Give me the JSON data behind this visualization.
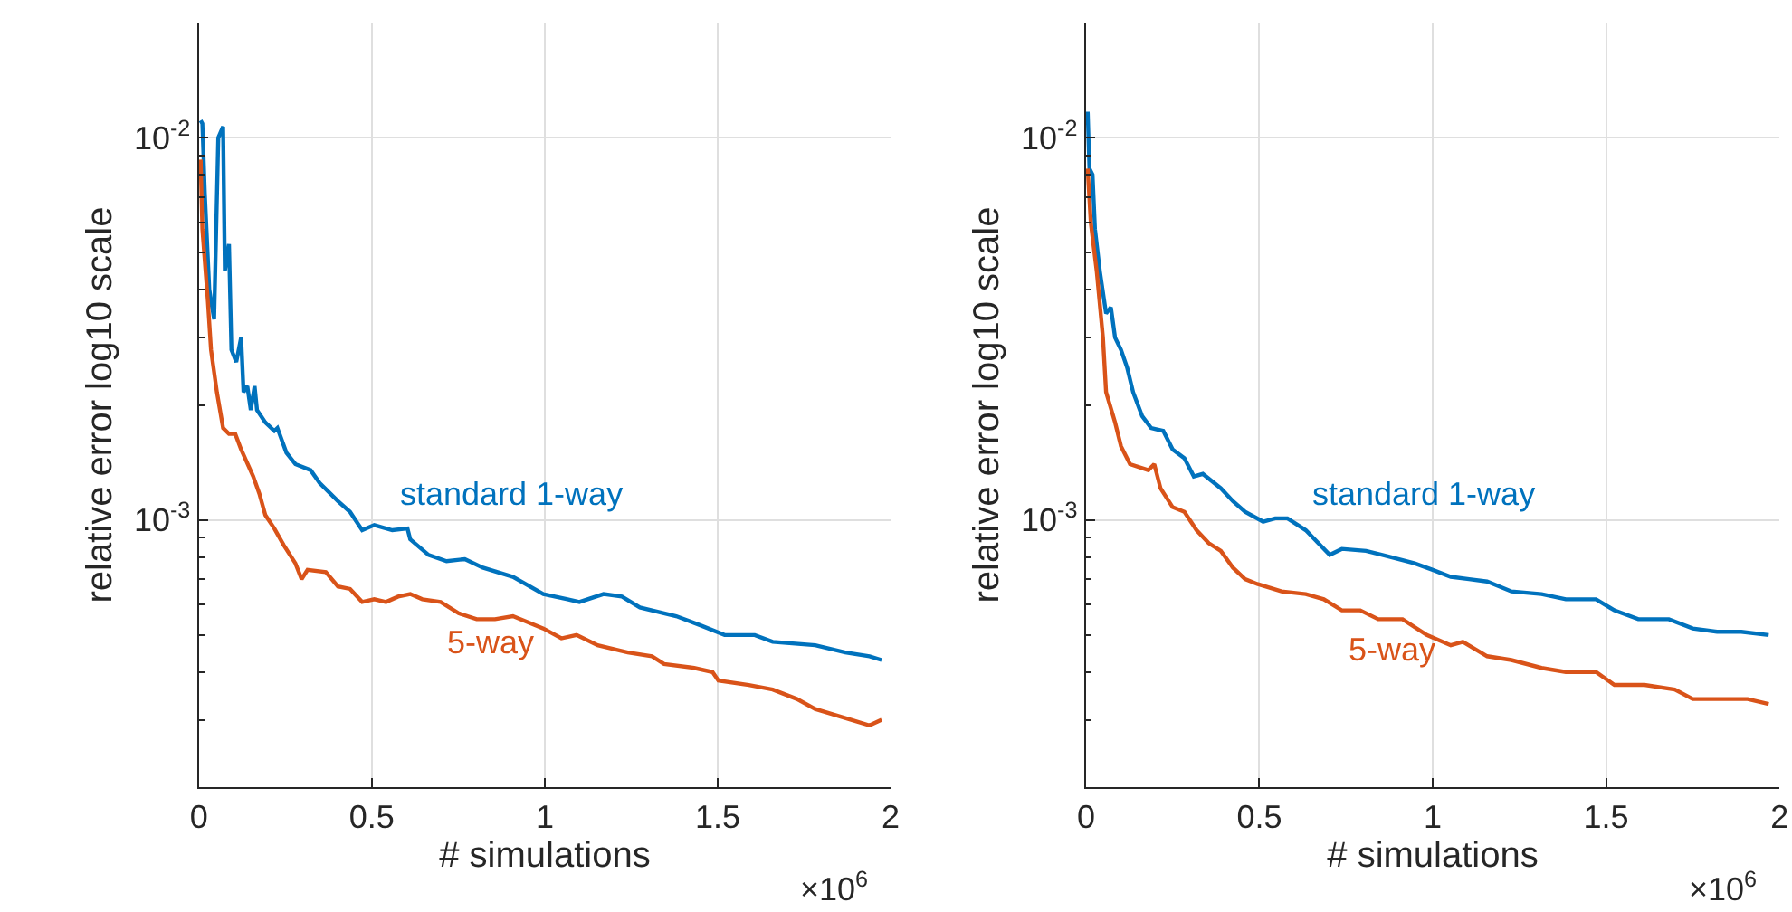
{
  "chart_data": [
    {
      "type": "line",
      "xlabel": "# simulations",
      "ylabel": "relative error log10 scale",
      "annotations": [
        "×10$^{6}$"
      ],
      "log": true,
      "grid": true,
      "xlim": [
        0,
        2
      ],
      "xticks": [
        0,
        0.5,
        1,
        1.5,
        2
      ],
      "ylim": [
        0.0002,
        0.02
      ],
      "yticks": [
        {
          "value": 0.0003,
          "label": null
        },
        {
          "value": 0.0004,
          "label": null
        },
        {
          "value": 0.0005,
          "label": null
        },
        {
          "value": 0.0006,
          "label": null
        },
        {
          "value": 0.0007,
          "label": null
        },
        {
          "value": 0.0008,
          "label": null
        },
        {
          "value": 0.0009,
          "label": null
        },
        {
          "value": 0.001,
          "label": "10$^{-3}$"
        },
        {
          "value": 0.002,
          "label": null
        },
        {
          "value": 0.003,
          "label": null
        },
        {
          "value": 0.004,
          "label": null
        },
        {
          "value": 0.005,
          "label": null
        },
        {
          "value": 0.006,
          "label": null
        },
        {
          "value": 0.007,
          "label": null
        },
        {
          "value": 0.008,
          "label": null
        },
        {
          "value": 0.009,
          "label": null
        },
        {
          "value": 0.01,
          "label": "10$^{-2}$"
        }
      ],
      "series": [
        {
          "name": "standard 1-way",
          "color": "#0072bd",
          "x": [
            0.005,
            0.01,
            0.017,
            0.03,
            0.044,
            0.056,
            0.07,
            0.075,
            0.087,
            0.094,
            0.108,
            0.122,
            0.129,
            0.14,
            0.15,
            0.161,
            0.168,
            0.192,
            0.218,
            0.227,
            0.253,
            0.279,
            0.323,
            0.349,
            0.402,
            0.437,
            0.472,
            0.507,
            0.559,
            0.603,
            0.611,
            0.664,
            0.716,
            0.769,
            0.821,
            0.908,
            0.996,
            1.066,
            1.1,
            1.17,
            1.223,
            1.275,
            1.38,
            1.45,
            1.52,
            1.607,
            1.659,
            1.782,
            1.869,
            1.939,
            1.974
          ],
          "values": [
            0.0111,
            0.0109,
            0.00718,
            0.00401,
            0.00335,
            0.01,
            0.0107,
            0.00448,
            0.00527,
            0.00279,
            0.00259,
            0.003,
            0.00216,
            0.00224,
            0.00194,
            0.00224,
            0.00194,
            0.0018,
            0.00171,
            0.00174,
            0.0015,
            0.0014,
            0.00135,
            0.00125,
            0.00112,
            0.00105,
            0.00094,
            0.00097,
            0.00094,
            0.00095,
            0.00089,
            0.00081,
            0.00078,
            0.00079,
            0.00075,
            0.00071,
            0.00064,
            0.00062,
            0.00061,
            0.00064,
            0.00063,
            0.00059,
            0.00056,
            0.00053,
            0.0005,
            0.0005,
            0.00048,
            0.00047,
            0.00045,
            0.00044,
            0.00043
          ]
        },
        {
          "name": "5-way",
          "color": "#d95319",
          "x": [
            0.005,
            0.01,
            0.026,
            0.035,
            0.052,
            0.07,
            0.087,
            0.105,
            0.122,
            0.157,
            0.175,
            0.192,
            0.218,
            0.245,
            0.279,
            0.297,
            0.314,
            0.367,
            0.402,
            0.437,
            0.472,
            0.507,
            0.541,
            0.576,
            0.611,
            0.646,
            0.699,
            0.751,
            0.803,
            0.856,
            0.908,
            0.996,
            1.048,
            1.092,
            1.153,
            1.24,
            1.31,
            1.345,
            1.432,
            1.485,
            1.502,
            1.59,
            1.659,
            1.729,
            1.782,
            1.834,
            1.886,
            1.939,
            1.974
          ],
          "values": [
            0.00877,
            0.00577,
            0.00373,
            0.00279,
            0.00216,
            0.00174,
            0.00168,
            0.00168,
            0.00153,
            0.0013,
            0.00117,
            0.00103,
            0.00095,
            0.00086,
            0.00077,
            0.0007,
            0.00074,
            0.00073,
            0.00067,
            0.00066,
            0.00061,
            0.00062,
            0.00061,
            0.00063,
            0.00064,
            0.00062,
            0.00061,
            0.00057,
            0.00055,
            0.00055,
            0.00056,
            0.00052,
            0.00049,
            0.0005,
            0.00047,
            0.00045,
            0.00044,
            0.00042,
            0.00041,
            0.0004,
            0.00038,
            0.00037,
            0.00036,
            0.00034,
            0.00032,
            0.00031,
            0.0003,
            0.00029,
            0.0003
          ]
        }
      ]
    },
    {
      "type": "line",
      "xlabel": "# simulations",
      "ylabel": "relative error log10 scale",
      "annotations": [
        "×10$^{6}$"
      ],
      "log": true,
      "grid": true,
      "xlim": [
        0,
        2
      ],
      "xticks": [
        0,
        0.5,
        1,
        1.5,
        2
      ],
      "ylim": [
        0.0002,
        0.02
      ],
      "yticks": [
        {
          "value": 0.0003,
          "label": null
        },
        {
          "value": 0.0004,
          "label": null
        },
        {
          "value": 0.0005,
          "label": null
        },
        {
          "value": 0.0006,
          "label": null
        },
        {
          "value": 0.0007,
          "label": null
        },
        {
          "value": 0.0008,
          "label": null
        },
        {
          "value": 0.0009,
          "label": null
        },
        {
          "value": 0.001,
          "label": "10$^{-3}$"
        },
        {
          "value": 0.002,
          "label": null
        },
        {
          "value": 0.003,
          "label": null
        },
        {
          "value": 0.004,
          "label": null
        },
        {
          "value": 0.005,
          "label": null
        },
        {
          "value": 0.006,
          "label": null
        },
        {
          "value": 0.007,
          "label": null
        },
        {
          "value": 0.008,
          "label": null
        },
        {
          "value": 0.009,
          "label": null
        },
        {
          "value": 0.01,
          "label": "10$^{-2}$"
        }
      ],
      "series": [
        {
          "name": "standard 1-way",
          "color": "#0072bd",
          "x": [
            0.005,
            0.01,
            0.019,
            0.026,
            0.04,
            0.058,
            0.072,
            0.084,
            0.101,
            0.119,
            0.136,
            0.162,
            0.188,
            0.223,
            0.25,
            0.284,
            0.311,
            0.337,
            0.389,
            0.424,
            0.459,
            0.511,
            0.546,
            0.581,
            0.634,
            0.703,
            0.738,
            0.808,
            0.878,
            0.948,
            1.0,
            1.052,
            1.105,
            1.157,
            1.227,
            1.314,
            1.384,
            1.471,
            1.524,
            1.593,
            1.681,
            1.75,
            1.82,
            1.89,
            1.969
          ],
          "values": [
            0.0117,
            0.00831,
            0.00801,
            0.00577,
            0.00448,
            0.00347,
            0.0036,
            0.003,
            0.00279,
            0.0025,
            0.00216,
            0.00187,
            0.00174,
            0.00171,
            0.00153,
            0.00145,
            0.0013,
            0.00132,
            0.00121,
            0.00112,
            0.00105,
            0.00099,
            0.00101,
            0.00101,
            0.00094,
            0.00081,
            0.00084,
            0.00083,
            0.0008,
            0.00077,
            0.00074,
            0.00071,
            0.0007,
            0.00069,
            0.00065,
            0.00064,
            0.00062,
            0.00062,
            0.00058,
            0.00055,
            0.00055,
            0.00052,
            0.00051,
            0.00051,
            0.0005
          ]
        },
        {
          "name": "5-way",
          "color": "#d95319",
          "x": [
            0.005,
            0.014,
            0.031,
            0.049,
            0.058,
            0.084,
            0.101,
            0.127,
            0.18,
            0.197,
            0.215,
            0.25,
            0.284,
            0.319,
            0.354,
            0.389,
            0.424,
            0.459,
            0.494,
            0.564,
            0.634,
            0.686,
            0.738,
            0.791,
            0.843,
            0.913,
            0.983,
            1.052,
            1.087,
            1.157,
            1.227,
            1.314,
            1.384,
            1.471,
            1.524,
            1.611,
            1.698,
            1.75,
            1.838,
            1.908,
            1.969
          ],
          "values": [
            0.00831,
            0.00599,
            0.00448,
            0.003,
            0.00216,
            0.0018,
            0.00156,
            0.0014,
            0.00135,
            0.0014,
            0.00121,
            0.00108,
            0.00105,
            0.00094,
            0.00087,
            0.00083,
            0.00075,
            0.0007,
            0.00068,
            0.00065,
            0.00064,
            0.00062,
            0.00058,
            0.00058,
            0.00055,
            0.00055,
            0.0005,
            0.00047,
            0.00048,
            0.00044,
            0.00043,
            0.00041,
            0.0004,
            0.0004,
            0.00037,
            0.00037,
            0.00036,
            0.00034,
            0.00034,
            0.00034,
            0.00033
          ]
        }
      ]
    }
  ]
}
